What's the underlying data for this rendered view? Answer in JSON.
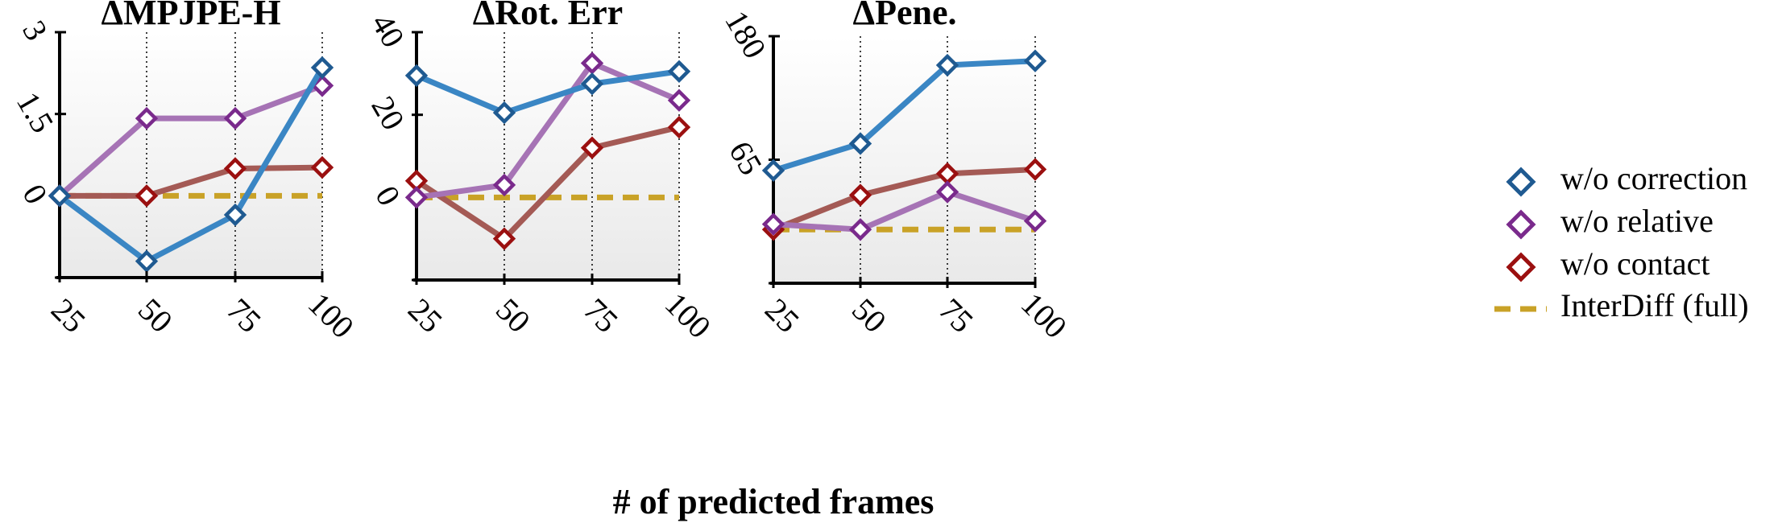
{
  "chart_data": [
    {
      "type": "line",
      "title": "ΔMPJPE-H",
      "categories": [
        "25",
        "50",
        "75",
        "100"
      ],
      "yticks": [
        "0",
        "1.5",
        "3"
      ],
      "ylim": [
        -1.5,
        3
      ],
      "series": [
        {
          "name": "w/o correction",
          "values": [
            0,
            -1.2,
            -0.35,
            2.35
          ]
        },
        {
          "name": "w/o relative",
          "values": [
            0,
            1.42,
            1.42,
            2.02
          ]
        },
        {
          "name": "w/o contact",
          "values": [
            0,
            0,
            0.5,
            0.52
          ]
        },
        {
          "name": "InterDiff (full)",
          "values": [
            0,
            0,
            0,
            0
          ]
        }
      ]
    },
    {
      "type": "line",
      "title": "ΔRot. Err",
      "categories": [
        "25",
        "50",
        "75",
        "100"
      ],
      "yticks": [
        "0",
        "20",
        "40"
      ],
      "ylim": [
        -20,
        40
      ],
      "series": [
        {
          "name": "w/o correction",
          "values": [
            29.5,
            20.5,
            27.5,
            30.5
          ]
        },
        {
          "name": "w/o relative",
          "values": [
            0,
            3,
            32.5,
            23.5
          ]
        },
        {
          "name": "w/o contact",
          "values": [
            4,
            -10,
            12,
            17
          ]
        },
        {
          "name": "InterDiff (full)",
          "values": [
            0,
            0,
            0,
            0
          ]
        }
      ]
    },
    {
      "type": "line",
      "title": "ΔPene.",
      "categories": [
        "25",
        "50",
        "75",
        "100"
      ],
      "yticks": [
        "65",
        "180"
      ],
      "ylim": [
        -50,
        180
      ],
      "series": [
        {
          "name": "w/o correction",
          "values": [
            55,
            80,
            153,
            157
          ]
        },
        {
          "name": "w/o relative",
          "values": [
            5,
            0,
            35,
            8
          ]
        },
        {
          "name": "w/o contact",
          "values": [
            0,
            32,
            52,
            56
          ]
        },
        {
          "name": "InterDiff (full)",
          "values": [
            0,
            0,
            0,
            0
          ]
        }
      ]
    }
  ],
  "xlabel": "# of predicted frames",
  "legend": {
    "position": "right",
    "entries": [
      {
        "label": "w/o correction",
        "color": "#1f5a91",
        "fill": "#3a86c4",
        "marker": "diamond"
      },
      {
        "label": "w/o relative",
        "color": "#7a2a8c",
        "fill": "#a673b5",
        "marker": "diamond"
      },
      {
        "label": "w/o contact",
        "color": "#9b1010",
        "fill": "#a45a55",
        "marker": "diamond"
      },
      {
        "label": "InterDiff (full)",
        "color": "#c9a227",
        "fill": "#c9a227",
        "marker": "dashed-line"
      }
    ]
  },
  "grid": "vertical-dotted"
}
